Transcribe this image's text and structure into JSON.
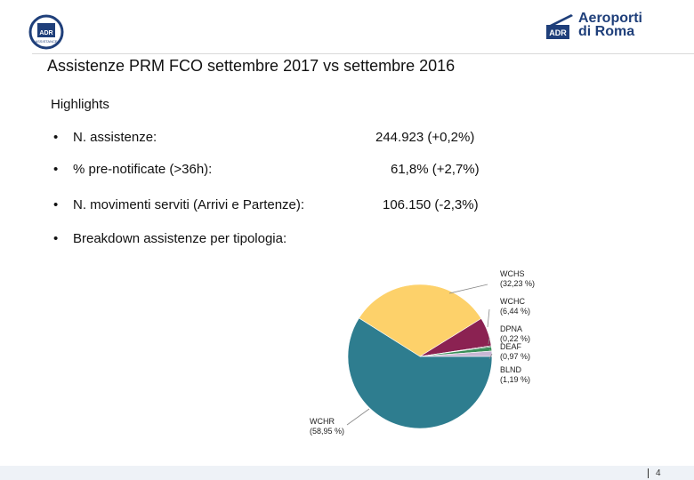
{
  "header": {
    "left_logo": {
      "badge_text": "ADR",
      "sub_text": "ASSISTANCE"
    },
    "right_logo": {
      "badge_text": "ADR",
      "brand_line1": "Aeroporti",
      "brand_line2": "di Roma"
    }
  },
  "title": "Assistenze PRM FCO settembre 2017 vs settembre 2016",
  "highlights_label": "Highlights",
  "bullets": [
    {
      "label": "N. assistenze:",
      "value": "244.923 (+0,2%)"
    },
    {
      "label": "% pre-notificate (>36h):",
      "value": "61,8% (+2,7%)"
    },
    {
      "label": "N. movimenti serviti (Arrivi e Partenze):",
      "value": "106.150  (-2,3%)"
    },
    {
      "label": "Breakdown assistenze per tipologia:",
      "value": ""
    }
  ],
  "chart_data": {
    "type": "pie",
    "title": "",
    "categories": [
      "WCHR",
      "WCHS",
      "WCHC",
      "DPNA",
      "DEAF",
      "BLND"
    ],
    "values": [
      58.95,
      32.23,
      6.44,
      0.22,
      0.97,
      1.19
    ],
    "labels": [
      {
        "name": "WCHR",
        "pct": "(58,95 %)"
      },
      {
        "name": "WCHS",
        "pct": "(32,23 %)"
      },
      {
        "name": "WCHC",
        "pct": "(6,44 %)"
      },
      {
        "name": "DPNA",
        "pct": "(0,22 %)"
      },
      {
        "name": "DEAF",
        "pct": "(0,97 %)"
      },
      {
        "name": "BLND",
        "pct": "(1,19 %)"
      }
    ],
    "colors": [
      "#2e7d8f",
      "#fdd16a",
      "#8b2252",
      "#222222",
      "#3a8f5a",
      "#c8b7d4"
    ]
  },
  "footer": {
    "page_number": "4"
  }
}
